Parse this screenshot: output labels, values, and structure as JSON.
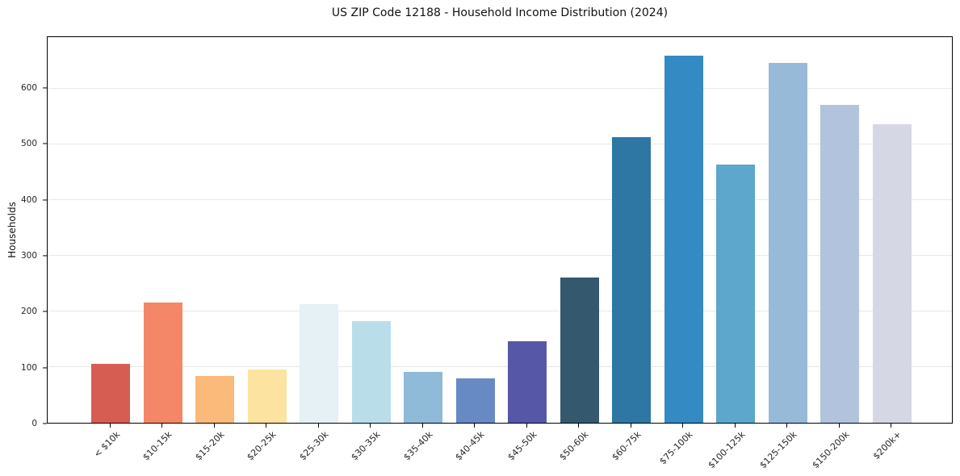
{
  "title": "US ZIP Code 12188 - Household Income Distribution (2024)",
  "chart_data": {
    "type": "bar",
    "title": "US ZIP Code 12188 - Household Income Distribution (2024)",
    "xlabel": "",
    "ylabel": "Households",
    "categories": [
      "< $10k",
      "$10-15k",
      "$15-20k",
      "$20-25k",
      "$25-30k",
      "$30-35k",
      "$35-40k",
      "$40-45k",
      "$45-50k",
      "$50-60k",
      "$60-75k",
      "$75-100k",
      "$100-125k",
      "$125-150k",
      "$150-200k",
      "$200k+"
    ],
    "values": [
      105,
      216,
      84,
      96,
      213,
      182,
      91,
      80,
      146,
      261,
      512,
      659,
      464,
      645,
      571,
      536
    ],
    "bar_colors": [
      "#d65d52",
      "#f38767",
      "#fbb97a",
      "#fde3a0",
      "#e5f1f4",
      "#badee9",
      "#8fbad8",
      "#6789c4",
      "#5757a7",
      "#34596e",
      "#2e76a4",
      "#348bc3",
      "#5ca7cb",
      "#97bad9",
      "#b1c3dd",
      "#d6d7e5"
    ],
    "ylim": [
      0,
      692
    ],
    "yticks": [
      0,
      100,
      200,
      300,
      400,
      500,
      600
    ],
    "grid": "horizontal",
    "gridline_color": "#e8e8e8",
    "background": "#ffffff",
    "legend": "none"
  }
}
